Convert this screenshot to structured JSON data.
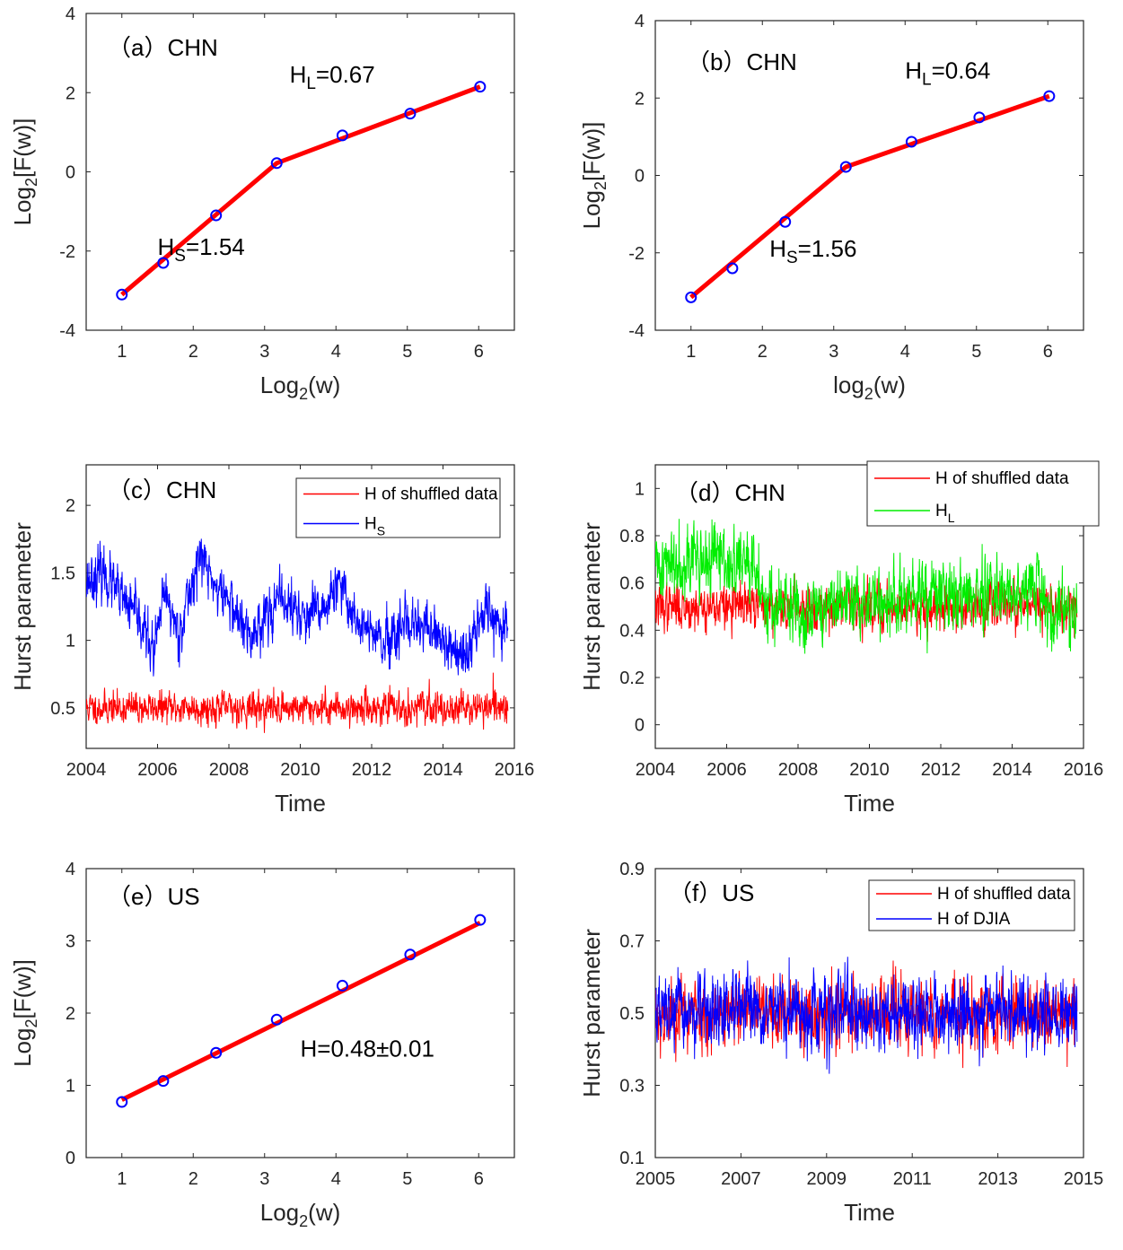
{
  "chart_data": [
    {
      "id": "a",
      "type": "line",
      "label": "（a）CHN",
      "xlabel": "Log",
      "xlabel_sub": "2",
      "xlabel_tail": "(w)",
      "ylabel": "Log",
      "ylabel_sub": "2",
      "ylabel_tail": "[F(w)]",
      "xlim": [
        0.5,
        6.5
      ],
      "ylim": [
        -4,
        4
      ],
      "xticks": [
        1,
        2,
        3,
        4,
        5,
        6
      ],
      "yticks": [
        -4,
        -2,
        0,
        2,
        4
      ],
      "points": {
        "x": [
          1,
          1.58,
          2.32,
          3.17,
          4.09,
          5.04,
          6.02
        ],
        "y": [
          -3.1,
          -2.3,
          -1.1,
          0.22,
          0.92,
          1.47,
          2.15
        ]
      },
      "fit": {
        "x": [
          1,
          3.17,
          6.02
        ],
        "y": [
          -3.1,
          0.22,
          2.15
        ]
      },
      "annotations": [
        {
          "text": "H",
          "sub": "L",
          "tail": "=0.67",
          "x": 3.35,
          "y": 2.25
        },
        {
          "text": "H",
          "sub": "S",
          "tail": "=1.54",
          "x": 1.5,
          "y": -2.1
        }
      ]
    },
    {
      "id": "b",
      "type": "line",
      "label": "（b）CHN",
      "xlabel": "log",
      "xlabel_sub": "2",
      "xlabel_tail": "(w)",
      "ylabel": "Log",
      "ylabel_sub": "2",
      "ylabel_tail": "[F(w)]",
      "xlim": [
        0.5,
        6.5
      ],
      "ylim": [
        -4,
        4
      ],
      "xticks": [
        1,
        2,
        3,
        4,
        5,
        6
      ],
      "yticks": [
        -4,
        -2,
        0,
        2,
        4
      ],
      "points": {
        "x": [
          1,
          1.58,
          2.32,
          3.17,
          4.09,
          5.04,
          6.02
        ],
        "y": [
          -3.15,
          -2.4,
          -1.2,
          0.22,
          0.87,
          1.5,
          2.05
        ]
      },
      "fit": {
        "x": [
          1,
          3.17,
          6.02
        ],
        "y": [
          -3.15,
          0.22,
          2.05
        ]
      },
      "annotations": [
        {
          "text": "H",
          "sub": "L",
          "tail": "=0.64",
          "x": 4.0,
          "y": 2.5
        },
        {
          "text": "H",
          "sub": "S",
          "tail": "=1.56",
          "x": 2.1,
          "y": -2.1
        }
      ]
    },
    {
      "id": "c",
      "type": "line",
      "label": "（c）CHN",
      "xlabel": "Time",
      "ylabel": "Hurst parameter",
      "xlim": [
        2004,
        2016
      ],
      "ylim": [
        0.2,
        2.3
      ],
      "xticks": [
        2004,
        2006,
        2008,
        2010,
        2012,
        2014,
        2016
      ],
      "yticks": [
        0.5,
        1,
        1.5,
        2
      ],
      "series": [
        {
          "name": "H of shuffled data",
          "color": "#ff0000",
          "mean": 0.5,
          "noise": 0.055,
          "seed": 11,
          "anchors": [
            [
              2004,
              0.5
            ],
            [
              2016,
              0.5
            ]
          ]
        },
        {
          "name": "H",
          "sub": "S",
          "color": "#0000ff",
          "noise": 0.09,
          "seed": 23,
          "anchors": [
            [
              2004,
              1.45
            ],
            [
              2004.5,
              1.5
            ],
            [
              2005,
              1.3
            ],
            [
              2005.5,
              1.15
            ],
            [
              2005.9,
              0.9
            ],
            [
              2006.2,
              1.35
            ],
            [
              2006.6,
              1.05
            ],
            [
              2007.0,
              1.45
            ],
            [
              2007.2,
              1.65
            ],
            [
              2007.6,
              1.4
            ],
            [
              2008.0,
              1.3
            ],
            [
              2008.6,
              1.0
            ],
            [
              2009.0,
              1.2
            ],
            [
              2009.5,
              1.3
            ],
            [
              2010.2,
              1.15
            ],
            [
              2010.7,
              1.25
            ],
            [
              2011.1,
              1.4
            ],
            [
              2011.6,
              1.15
            ],
            [
              2012.0,
              1.05
            ],
            [
              2012.4,
              0.95
            ],
            [
              2012.8,
              1.05
            ],
            [
              2013.3,
              1.1
            ],
            [
              2013.8,
              1.05
            ],
            [
              2014.4,
              0.9
            ],
            [
              2014.6,
              0.8
            ],
            [
              2014.9,
              1.1
            ],
            [
              2015.2,
              1.3
            ],
            [
              2015.5,
              1.1
            ],
            [
              2015.9,
              1.2
            ]
          ]
        }
      ],
      "legend": {
        "location": "top-right"
      }
    },
    {
      "id": "d",
      "type": "line",
      "label": "（d）CHN",
      "xlabel": "Time",
      "ylabel": "Hurst parameter",
      "xlim": [
        2004,
        2016
      ],
      "ylim": [
        -0.1,
        1.1
      ],
      "xticks": [
        2004,
        2006,
        2008,
        2010,
        2012,
        2014,
        2016
      ],
      "yticks": [
        0,
        0.2,
        0.4,
        0.6,
        0.8,
        1
      ],
      "series": [
        {
          "name": "H of shuffled data",
          "color": "#ff0000",
          "noise": 0.045,
          "seed": 37,
          "anchors": [
            [
              2004,
              0.5
            ],
            [
              2016,
              0.5
            ]
          ]
        },
        {
          "name": "H",
          "sub": "L",
          "color": "#00ee00",
          "noise": 0.07,
          "seed": 41,
          "anchors": [
            [
              2004,
              0.66
            ],
            [
              2004.6,
              0.7
            ],
            [
              2005.0,
              0.72
            ],
            [
              2005.4,
              0.68
            ],
            [
              2005.8,
              0.72
            ],
            [
              2006.2,
              0.65
            ],
            [
              2006.5,
              0.7
            ],
            [
              2006.9,
              0.6
            ],
            [
              2007.3,
              0.5
            ],
            [
              2008.0,
              0.48
            ],
            [
              2009.0,
              0.5
            ],
            [
              2010.0,
              0.52
            ],
            [
              2011.0,
              0.52
            ],
            [
              2012.0,
              0.55
            ],
            [
              2013.0,
              0.55
            ],
            [
              2014.0,
              0.56
            ],
            [
              2014.7,
              0.62
            ],
            [
              2015.0,
              0.45
            ],
            [
              2015.5,
              0.5
            ],
            [
              2015.9,
              0.47
            ]
          ]
        }
      ],
      "legend": {
        "location": "top-right"
      }
    },
    {
      "id": "e",
      "type": "line",
      "label": "（e）US",
      "xlabel": "Log",
      "xlabel_sub": "2",
      "xlabel_tail": "(w)",
      "ylabel": "Log",
      "ylabel_sub": "2",
      "ylabel_tail": "[F(w)]",
      "xlim": [
        0.5,
        6.5
      ],
      "ylim": [
        0,
        4
      ],
      "xticks": [
        1,
        2,
        3,
        4,
        5,
        6
      ],
      "yticks": [
        0,
        1,
        2,
        3,
        4
      ],
      "points": {
        "x": [
          1,
          1.58,
          2.32,
          3.17,
          4.09,
          5.04,
          6.02
        ],
        "y": [
          0.77,
          1.06,
          1.45,
          1.91,
          2.38,
          2.81,
          3.29
        ]
      },
      "fit": {
        "x": [
          1,
          6.02
        ],
        "y": [
          0.8,
          3.25
        ]
      },
      "annotations": [
        {
          "text": "H=0.48±0.01",
          "x": 3.5,
          "y": 1.4
        }
      ]
    },
    {
      "id": "f",
      "type": "line",
      "label": "（f）US",
      "xlabel": "Time",
      "ylabel": "Hurst parameter",
      "xlim": [
        2005,
        2015
      ],
      "ylim": [
        0.1,
        0.9
      ],
      "xticks": [
        2005,
        2007,
        2009,
        2011,
        2013,
        2015
      ],
      "yticks": [
        0.1,
        0.3,
        0.5,
        0.7,
        0.9
      ],
      "series": [
        {
          "name": "H of shuffled data",
          "color": "#ff0000",
          "noise": 0.045,
          "seed": 53,
          "anchors": [
            [
              2005,
              0.5
            ],
            [
              2015,
              0.5
            ]
          ]
        },
        {
          "name": "H of DJIA",
          "color": "#0000ff",
          "noise": 0.045,
          "seed": 67,
          "anchors": [
            [
              2005,
              0.5
            ],
            [
              2015,
              0.5
            ]
          ]
        }
      ],
      "legend": {
        "location": "top-right"
      }
    }
  ]
}
